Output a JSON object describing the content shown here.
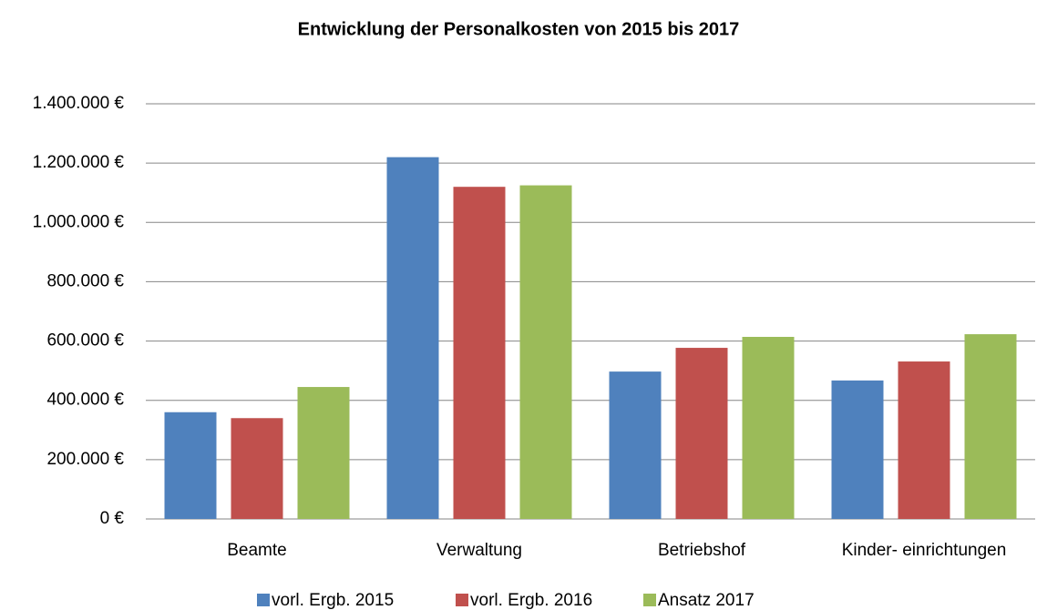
{
  "chart_data": {
    "type": "bar",
    "title": "Entwicklung der  Personalkosten von 2015 bis 2017",
    "categories": [
      "Beamte",
      "Verwaltung",
      "Betriebshof",
      "Kinder- einrichtungen"
    ],
    "series": [
      {
        "name": "vorl. Ergb. 2015",
        "color": "#4f81bd",
        "values": [
          360000,
          1220000,
          497000,
          467000
        ]
      },
      {
        "name": "vorl. Ergb. 2016",
        "color": "#c0504d",
        "values": [
          340000,
          1120000,
          577000,
          531000
        ]
      },
      {
        "name": "Ansatz 2017",
        "color": "#9bbb59",
        "values": [
          445000,
          1125000,
          614000,
          623000
        ]
      }
    ],
    "ylim": [
      0,
      1400000
    ],
    "yticks": [
      {
        "value": 0,
        "label": "0 €"
      },
      {
        "value": 200000,
        "label": "200.000 €"
      },
      {
        "value": 400000,
        "label": "400.000 €"
      },
      {
        "value": 600000,
        "label": "600.000 €"
      },
      {
        "value": 800000,
        "label": "800.000 €"
      },
      {
        "value": 1000000,
        "label": "1.000.000 €"
      },
      {
        "value": 1200000,
        "label": "1.200.000 €"
      },
      {
        "value": 1400000,
        "label": "1.400.000 €"
      }
    ],
    "grid": true,
    "legend": "bottom"
  }
}
